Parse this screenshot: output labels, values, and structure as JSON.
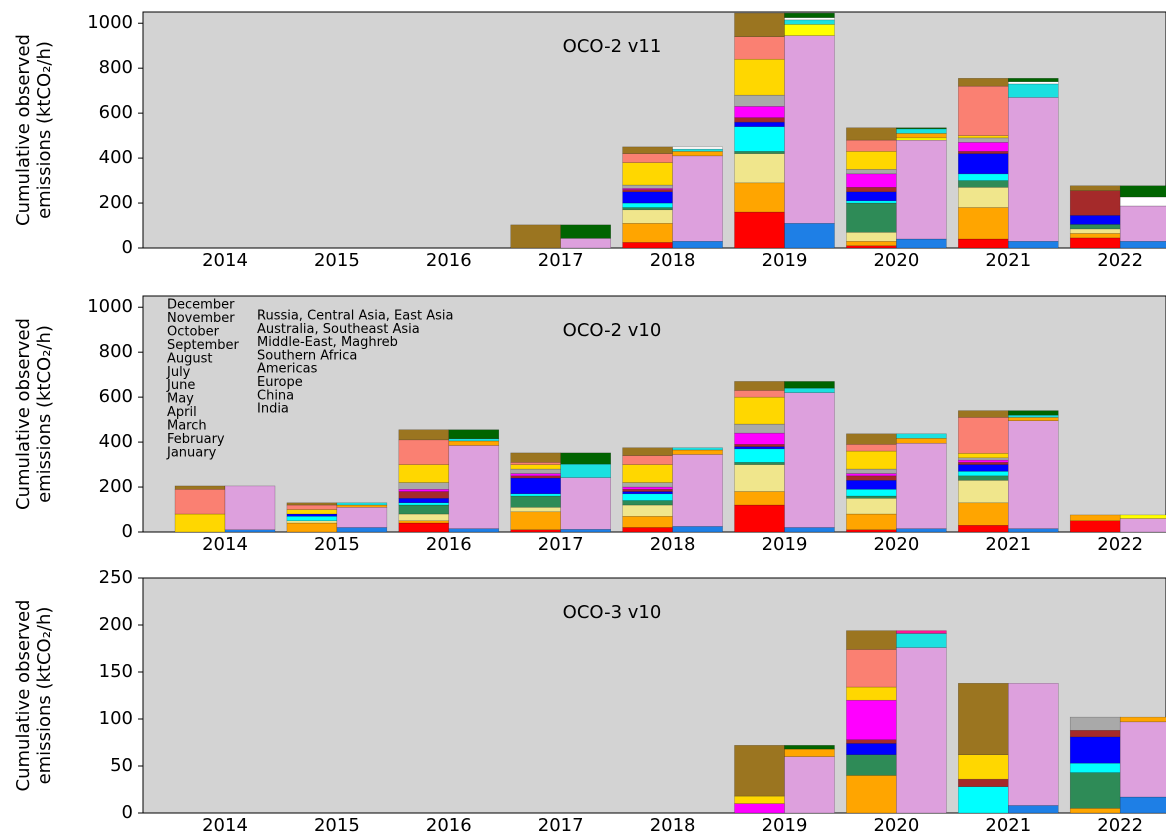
{
  "legend": {
    "months": [
      {
        "name": "January",
        "color": "#ff0000"
      },
      {
        "name": "February",
        "color": "#ffa500"
      },
      {
        "name": "March",
        "color": "#f0e68c"
      },
      {
        "name": "April",
        "color": "#2e8b57"
      },
      {
        "name": "May",
        "color": "#00ffff"
      },
      {
        "name": "June",
        "color": "#0000ff"
      },
      {
        "name": "July",
        "color": "#a52a2a"
      },
      {
        "name": "August",
        "color": "#ff00ff"
      },
      {
        "name": "September",
        "color": "#a9a9a9"
      },
      {
        "name": "October",
        "color": "#ffd700"
      },
      {
        "name": "November",
        "color": "#fa8072"
      },
      {
        "name": "December",
        "color": "#9b7520"
      }
    ],
    "regions": [
      {
        "name": "India",
        "color": "#1e7fe6"
      },
      {
        "name": "China",
        "color": "#dda0dd"
      },
      {
        "name": "Europe",
        "color": "#ffff00"
      },
      {
        "name": "Americas",
        "color": "#ffa500"
      },
      {
        "name": "Southern Africa",
        "color": "#1ce0e0"
      },
      {
        "name": "Middle-East, Maghreb",
        "color": "#ffffff"
      },
      {
        "name": "Australia, Southeast Asia",
        "color": "#ff1493"
      },
      {
        "name": "Russia, Central Asia, East Asia",
        "color": "#006400"
      }
    ]
  },
  "chart_data": [
    {
      "type": "stacked-bar-pair",
      "title": "OCO-2 v11",
      "ylabel": [
        "Cumulative observed",
        "emissions (ktCO₂/h)"
      ],
      "categories": [
        "2014",
        "2015",
        "2016",
        "2017",
        "2018",
        "2019",
        "2020",
        "2021",
        "2022"
      ],
      "ylim": [
        0,
        1050
      ],
      "yticks": [
        0,
        200,
        400,
        600,
        800,
        1000
      ],
      "month_values": [
        [
          0,
          0,
          0,
          0,
          25,
          160,
          10,
          40,
          45
        ],
        [
          0,
          0,
          0,
          0,
          85,
          130,
          20,
          140,
          20
        ],
        [
          0,
          0,
          0,
          0,
          60,
          130,
          40,
          90,
          20
        ],
        [
          0,
          0,
          0,
          0,
          10,
          10,
          130,
          30,
          20
        ],
        [
          0,
          0,
          0,
          0,
          20,
          110,
          10,
          30,
          0
        ],
        [
          0,
          0,
          0,
          0,
          50,
          20,
          40,
          90,
          40
        ],
        [
          0,
          0,
          0,
          0,
          10,
          20,
          20,
          10,
          110
        ],
        [
          0,
          0,
          0,
          0,
          5,
          50,
          60,
          40,
          0
        ],
        [
          0,
          0,
          0,
          0,
          15,
          50,
          20,
          20,
          0
        ],
        [
          0,
          0,
          0,
          0,
          100,
          160,
          80,
          10,
          0
        ],
        [
          0,
          0,
          0,
          0,
          40,
          100,
          50,
          220,
          0
        ],
        [
          0,
          0,
          0,
          103,
          30,
          105,
          55,
          35,
          22
        ]
      ],
      "region_values": [
        [
          0,
          0,
          0,
          0,
          30,
          110,
          40,
          30,
          30
        ],
        [
          0,
          0,
          0,
          43,
          380,
          835,
          440,
          640,
          157
        ],
        [
          0,
          0,
          0,
          0,
          0,
          50,
          10,
          0,
          0
        ],
        [
          0,
          0,
          0,
          0,
          20,
          0,
          20,
          0,
          0
        ],
        [
          0,
          0,
          0,
          0,
          10,
          20,
          20,
          60,
          0
        ],
        [
          0,
          0,
          0,
          0,
          10,
          10,
          0,
          10,
          40
        ],
        [
          0,
          0,
          0,
          0,
          0,
          0,
          0,
          0,
          0
        ],
        [
          0,
          0,
          0,
          60,
          0,
          20,
          5,
          15,
          50
        ]
      ]
    },
    {
      "type": "stacked-bar-pair",
      "title": "OCO-2 v10",
      "ylabel": [
        "Cumulative observed",
        "emissions (ktCO₂/h)"
      ],
      "categories": [
        "2014",
        "2015",
        "2016",
        "2017",
        "2018",
        "2019",
        "2020",
        "2021",
        "2022"
      ],
      "ylim": [
        0,
        1050
      ],
      "yticks": [
        0,
        200,
        400,
        600,
        800,
        1000
      ],
      "show_legend": true,
      "month_values": [
        [
          0,
          0,
          40,
          10,
          20,
          120,
          10,
          30,
          50
        ],
        [
          0,
          40,
          10,
          80,
          50,
          60,
          70,
          100,
          26
        ],
        [
          0,
          10,
          30,
          20,
          50,
          120,
          70,
          100,
          0
        ],
        [
          0,
          0,
          40,
          50,
          20,
          10,
          10,
          20,
          0
        ],
        [
          0,
          20,
          10,
          10,
          30,
          60,
          30,
          20,
          0
        ],
        [
          0,
          10,
          20,
          70,
          10,
          10,
          40,
          30,
          0
        ],
        [
          0,
          0,
          30,
          10,
          10,
          10,
          20,
          10,
          0
        ],
        [
          0,
          0,
          10,
          10,
          10,
          50,
          10,
          10,
          0
        ],
        [
          0,
          0,
          30,
          20,
          20,
          40,
          20,
          10,
          0
        ],
        [
          80,
          20,
          80,
          20,
          80,
          120,
          80,
          20,
          0
        ],
        [
          110,
          20,
          110,
          10,
          40,
          30,
          30,
          160,
          0
        ],
        [
          15,
          10,
          45,
          42,
          35,
          40,
          47,
          30,
          0
        ]
      ],
      "region_values": [
        [
          10,
          20,
          15,
          12,
          25,
          20,
          15,
          15,
          0
        ],
        [
          195,
          90,
          370,
          230,
          320,
          600,
          380,
          480,
          60
        ],
        [
          0,
          0,
          0,
          0,
          0,
          0,
          0,
          0,
          16
        ],
        [
          0,
          10,
          20,
          0,
          20,
          0,
          22,
          15,
          0
        ],
        [
          0,
          10,
          10,
          60,
          10,
          20,
          20,
          10,
          0
        ],
        [
          0,
          0,
          0,
          0,
          0,
          0,
          0,
          0,
          0
        ],
        [
          0,
          0,
          0,
          0,
          0,
          0,
          0,
          0,
          0
        ],
        [
          0,
          0,
          40,
          50,
          0,
          30,
          0,
          20,
          0
        ]
      ]
    },
    {
      "type": "stacked-bar-pair",
      "title": "OCO-3 v10",
      "ylabel": [
        "Cumulative observed",
        "emissions (ktCO₂/h)"
      ],
      "categories": [
        "2014",
        "2015",
        "2016",
        "2017",
        "2018",
        "2019",
        "2020",
        "2021",
        "2022"
      ],
      "ylim": [
        0,
        250
      ],
      "yticks": [
        0,
        50,
        100,
        150,
        200,
        250
      ],
      "month_values": [
        [
          0,
          0,
          0,
          0,
          0,
          0,
          0,
          0,
          0
        ],
        [
          0,
          0,
          0,
          0,
          0,
          0,
          40,
          0,
          5
        ],
        [
          0,
          0,
          0,
          0,
          0,
          0,
          0,
          0,
          0
        ],
        [
          0,
          0,
          0,
          0,
          0,
          0,
          22,
          0,
          38
        ],
        [
          0,
          0,
          0,
          0,
          0,
          0,
          0,
          28,
          10
        ],
        [
          0,
          0,
          0,
          0,
          0,
          0,
          12,
          0,
          28
        ],
        [
          0,
          0,
          0,
          0,
          0,
          0,
          4,
          8,
          7
        ],
        [
          0,
          0,
          0,
          0,
          0,
          10,
          42,
          0,
          0
        ],
        [
          0,
          0,
          0,
          0,
          0,
          0,
          0,
          0,
          14
        ],
        [
          0,
          0,
          0,
          0,
          0,
          8,
          14,
          26,
          0
        ],
        [
          0,
          0,
          0,
          0,
          0,
          0,
          40,
          0,
          0
        ],
        [
          0,
          0,
          0,
          0,
          0,
          54,
          20,
          76,
          0
        ]
      ],
      "region_values": [
        [
          0,
          0,
          0,
          0,
          0,
          0,
          0,
          8,
          17
        ],
        [
          0,
          0,
          0,
          0,
          0,
          60,
          176,
          130,
          80
        ],
        [
          0,
          0,
          0,
          0,
          0,
          0,
          0,
          0,
          0
        ],
        [
          0,
          0,
          0,
          0,
          0,
          8,
          0,
          0,
          5
        ],
        [
          0,
          0,
          0,
          0,
          0,
          0,
          15,
          0,
          0
        ],
        [
          0,
          0,
          0,
          0,
          0,
          0,
          0,
          0,
          0
        ],
        [
          0,
          0,
          0,
          0,
          0,
          0,
          3,
          0,
          0
        ],
        [
          0,
          0,
          0,
          0,
          0,
          4,
          0,
          0,
          0
        ]
      ]
    }
  ]
}
